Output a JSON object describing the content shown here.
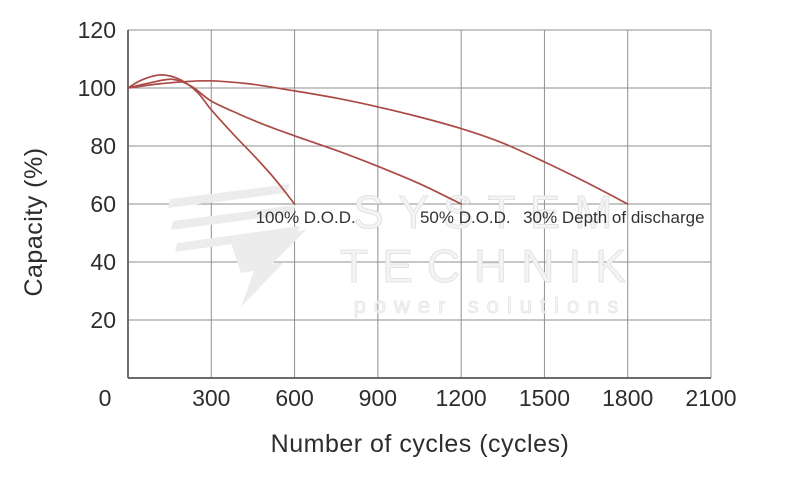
{
  "chart_data": {
    "type": "line",
    "title": "",
    "xlabel": "Number of cycles (cycles)",
    "ylabel": "Capacity (%)",
    "xlim": [
      0,
      2100
    ],
    "ylim": [
      0,
      120
    ],
    "xticks": [
      0,
      300,
      600,
      900,
      1200,
      1500,
      1800,
      2100
    ],
    "yticks": [
      20,
      40,
      60,
      80,
      100,
      120
    ],
    "grid": true,
    "legend_position": "inline-annotations",
    "line_color": "#ab4b45",
    "series": [
      {
        "name": "100% D.O.D.",
        "points": [
          [
            0,
            100
          ],
          [
            50,
            102.8
          ],
          [
            120,
            104.5
          ],
          [
            190,
            102.8
          ],
          [
            250,
            98.5
          ],
          [
            300,
            92.5
          ],
          [
            380,
            84
          ],
          [
            460,
            76
          ],
          [
            530,
            68.5
          ],
          [
            600,
            60
          ]
        ]
      },
      {
        "name": "50% D.O.D.",
        "points": [
          [
            0,
            100
          ],
          [
            80,
            101.8
          ],
          [
            160,
            103
          ],
          [
            230,
            100.5
          ],
          [
            300,
            95.5
          ],
          [
            400,
            91
          ],
          [
            500,
            87
          ],
          [
            600,
            83.5
          ],
          [
            750,
            78.5
          ],
          [
            900,
            73
          ],
          [
            1050,
            67
          ],
          [
            1200,
            60
          ]
        ]
      },
      {
        "name": "30% Depth of discharge",
        "points": [
          [
            0,
            100
          ],
          [
            120,
            101.5
          ],
          [
            280,
            102.5
          ],
          [
            430,
            101.5
          ],
          [
            600,
            99
          ],
          [
            750,
            96.5
          ],
          [
            900,
            93.5
          ],
          [
            1050,
            90
          ],
          [
            1200,
            86
          ],
          [
            1350,
            81
          ],
          [
            1500,
            74.5
          ],
          [
            1650,
            67.5
          ],
          [
            1800,
            60
          ]
        ]
      }
    ],
    "annotations": [
      {
        "text": "100% D.O.D.",
        "x": 640,
        "y": 55.5
      },
      {
        "text": "50% D.O.D.",
        "x": 1215,
        "y": 55.5
      },
      {
        "text": "30% Depth of discharge",
        "x": 1750,
        "y": 55.5
      }
    ]
  },
  "watermark": {
    "line1": "SYSTEM",
    "line2": "TECHNIK",
    "line3": "power solutions"
  }
}
